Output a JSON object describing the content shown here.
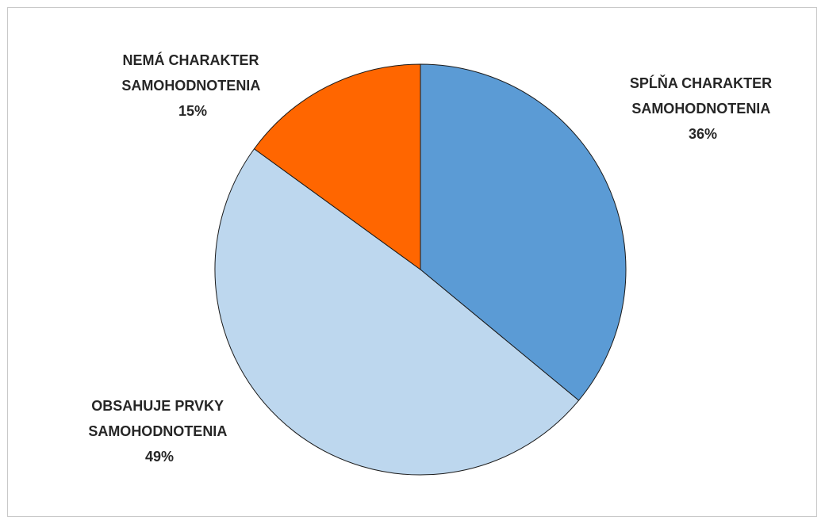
{
  "chart_data": {
    "type": "pie",
    "title": "",
    "slices": [
      {
        "label_lines": [
          "SPĹŇA CHARAKTER",
          "SAMOHODNOTENIA"
        ],
        "percent_label": "36%",
        "value": 36,
        "color": "#5b9bd5"
      },
      {
        "label_lines": [
          "OBSAHUJE PRVKY",
          "SAMOHODNOTENIA"
        ],
        "percent_label": "49%",
        "value": 49,
        "color": "#bdd7ee"
      },
      {
        "label_lines": [
          "NEMÁ CHARAKTER",
          "SAMOHODNOTENIA"
        ],
        "percent_label": "15%",
        "value": 15,
        "color": "#ff6600"
      }
    ],
    "start_angle": "12 o'clock",
    "direction": "clockwise",
    "slice_border": "#1a1a1a",
    "legend": "none"
  }
}
